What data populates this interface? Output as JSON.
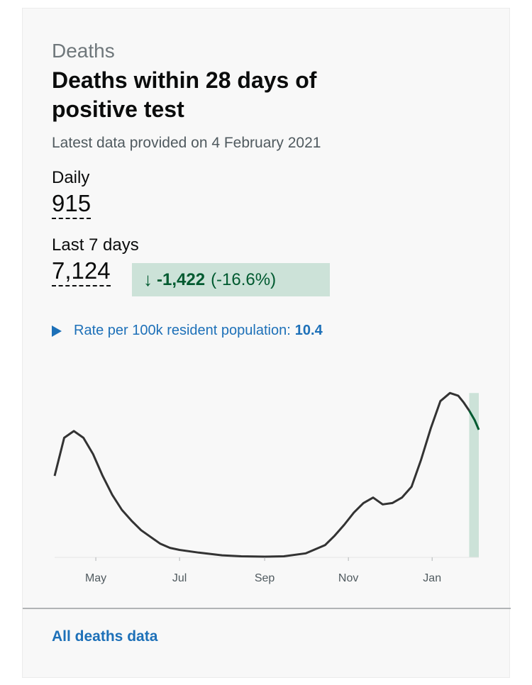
{
  "card": {
    "category": "Deaths",
    "title": "Deaths within 28 days of positive test",
    "updated": "Latest data provided on 4 February 2021"
  },
  "metrics": {
    "daily_label": "Daily",
    "daily_value": "915",
    "week_label": "Last 7 days",
    "week_value": "7,124",
    "change_arrow": "↓",
    "change_absolute": "-1,422",
    "change_percent": "(-16.6%)"
  },
  "rate": {
    "label": "Rate per 100k resident population:",
    "value": "10.4"
  },
  "footer": {
    "link": "All deaths data"
  },
  "colors": {
    "line": "#333333",
    "highlight_line": "#005a30",
    "highlight_band": "#cce2d8",
    "link": "#1d70b8"
  },
  "chart_data": {
    "type": "line",
    "title": "",
    "xlabel": "",
    "ylabel": "",
    "x_tick_labels": [
      "May",
      "Jul",
      "Sep",
      "Nov",
      "Jan"
    ],
    "x": [
      "2020-04-01",
      "2020-04-08",
      "2020-04-15",
      "2020-04-22",
      "2020-04-29",
      "2020-05-06",
      "2020-05-13",
      "2020-05-20",
      "2020-05-27",
      "2020-06-03",
      "2020-06-10",
      "2020-06-17",
      "2020-06-24",
      "2020-07-01",
      "2020-07-15",
      "2020-08-01",
      "2020-08-15",
      "2020-09-01",
      "2020-09-15",
      "2020-10-01",
      "2020-10-15",
      "2020-10-22",
      "2020-10-29",
      "2020-11-05",
      "2020-11-12",
      "2020-11-19",
      "2020-11-26",
      "2020-12-03",
      "2020-12-10",
      "2020-12-17",
      "2020-12-24",
      "2020-12-31",
      "2021-01-07",
      "2021-01-14",
      "2021-01-20",
      "2021-01-24",
      "2021-01-28",
      "2021-02-01",
      "2021-02-04"
    ],
    "series": [
      {
        "values": [
          600,
          880,
          930,
          880,
          760,
          600,
          460,
          350,
          270,
          200,
          150,
          100,
          70,
          55,
          35,
          15,
          8,
          5,
          8,
          30,
          90,
          160,
          240,
          330,
          400,
          440,
          390,
          400,
          440,
          520,
          720,
          950,
          1150,
          1210,
          1190,
          1140,
          1080,
          1010,
          940
        ]
      }
    ],
    "highlight_range": [
      "2021-01-28",
      "2021-02-04"
    ],
    "ylim": [
      0,
      1300
    ],
    "grid": false,
    "legend": "none"
  }
}
